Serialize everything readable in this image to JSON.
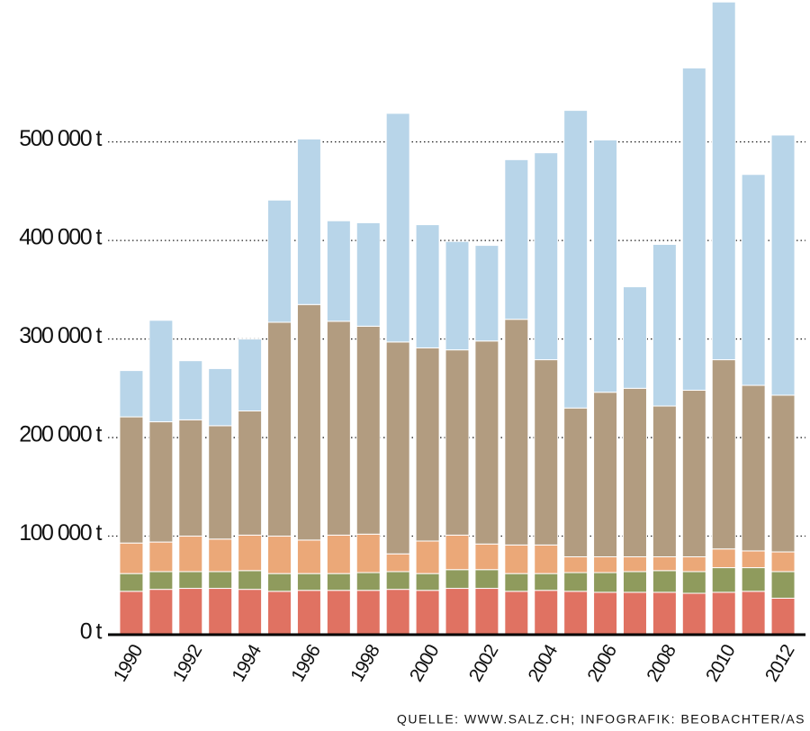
{
  "chart_data": {
    "type": "bar",
    "stacked": true,
    "categories": [
      "1990",
      null,
      "1992",
      null,
      "1994",
      null,
      "1996",
      null,
      "1998",
      null,
      "2000",
      null,
      "2002",
      null,
      "2004",
      null,
      "2006",
      null,
      "2008",
      null,
      "2010",
      null,
      "2012"
    ],
    "series": [
      {
        "color": "#e07262",
        "values": [
          44000,
          46000,
          47000,
          47000,
          46000,
          44000,
          45000,
          45000,
          45000,
          46000,
          45000,
          47000,
          47000,
          44000,
          45000,
          44000,
          43000,
          43000,
          43000,
          42000,
          43000,
          44000,
          37000
        ]
      },
      {
        "color": "#8f9b5d",
        "values": [
          18000,
          18000,
          17000,
          17000,
          19000,
          18000,
          17000,
          17000,
          18000,
          18000,
          17000,
          19000,
          19000,
          18000,
          17000,
          19000,
          20000,
          21000,
          22000,
          22000,
          25000,
          24000,
          27000
        ]
      },
      {
        "color": "#eba878",
        "values": [
          31000,
          30000,
          36000,
          33000,
          36000,
          38000,
          34000,
          39000,
          39000,
          18000,
          33000,
          35000,
          26000,
          29000,
          29000,
          16000,
          16000,
          15000,
          14000,
          15000,
          19000,
          17000,
          20000
        ]
      },
      {
        "color": "#b29c80",
        "values": [
          128000,
          122000,
          118000,
          115000,
          126000,
          217000,
          239000,
          217000,
          211000,
          215000,
          196000,
          188000,
          206000,
          229000,
          188000,
          151000,
          167000,
          171000,
          153000,
          169000,
          192000,
          168000,
          159000
        ]
      },
      {
        "color": "#b8d5e9",
        "values": [
          47000,
          103000,
          60000,
          58000,
          73000,
          124000,
          168000,
          102000,
          105000,
          232000,
          125000,
          110000,
          97000,
          162000,
          210000,
          302000,
          256000,
          103000,
          164000,
          327000,
          363000,
          214000,
          264000
        ]
      }
    ],
    "ylim": [
      0,
      644000
    ],
    "yticks": [
      {
        "value": 0,
        "label": "0 t"
      },
      {
        "value": 100000,
        "label": "100 000 t"
      },
      {
        "value": 200000,
        "label": "200 000 t"
      },
      {
        "value": 300000,
        "label": "300 000 t"
      },
      {
        "value": 400000,
        "label": "400 000 t"
      },
      {
        "value": 500000,
        "label": "500 000 t"
      }
    ],
    "grid": true,
    "source": "QUELLE: WWW.SALZ.CH; INFOGRAFIK: BEOBACHTER/AS"
  }
}
